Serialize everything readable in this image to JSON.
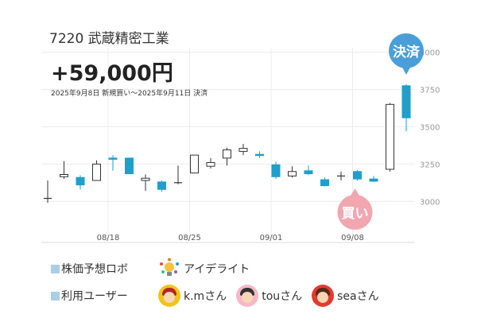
{
  "header": {
    "title": "7220 武蔵精密工業",
    "profit": "+59,000円",
    "period": "2025年9月8日 新規買い〜2025年9月11日 決済"
  },
  "badges": {
    "buy": "買い",
    "settle": "決済"
  },
  "colors": {
    "down": "#1e9fcc",
    "up_border": "#333333",
    "badge": "#4a9fd8",
    "buy_badge": "#f2a6b0"
  },
  "chart_data": {
    "type": "candlestick",
    "y_ticks": [
      "3000",
      "3250",
      "3500",
      "3750",
      "4000"
    ],
    "y_tick_values": [
      3000,
      3250,
      3500,
      3750,
      4000
    ],
    "ylim": [
      2735,
      4030
    ],
    "x_ticks": [
      "08/18",
      "08/25",
      "09/01",
      "09/08"
    ],
    "x_tick_candle_index": [
      4,
      9,
      14,
      19
    ],
    "candles": [
      {
        "open": 3020,
        "close": 3020,
        "high": 3140,
        "low": 2990
      },
      {
        "open": 3165,
        "close": 3180,
        "high": 3270,
        "low": 3150
      },
      {
        "open": 3160,
        "close": 3110,
        "high": 3175,
        "low": 3080
      },
      {
        "open": 3140,
        "close": 3250,
        "high": 3275,
        "low": 3140
      },
      {
        "open": 3290,
        "close": 3285,
        "high": 3310,
        "low": 3205
      },
      {
        "open": 3290,
        "close": 3185,
        "high": 3290,
        "low": 3185
      },
      {
        "open": 3140,
        "close": 3155,
        "high": 3180,
        "low": 3070
      },
      {
        "open": 3130,
        "close": 3080,
        "high": 3140,
        "low": 3065
      },
      {
        "open": 3125,
        "close": 3125,
        "high": 3240,
        "low": 3115
      },
      {
        "open": 3190,
        "close": 3310,
        "high": 3310,
        "low": 3190
      },
      {
        "open": 3235,
        "close": 3260,
        "high": 3290,
        "low": 3220
      },
      {
        "open": 3290,
        "close": 3345,
        "high": 3360,
        "low": 3240
      },
      {
        "open": 3335,
        "close": 3355,
        "high": 3385,
        "low": 3310
      },
      {
        "open": 3315,
        "close": 3310,
        "high": 3335,
        "low": 3290
      },
      {
        "open": 3245,
        "close": 3165,
        "high": 3265,
        "low": 3150
      },
      {
        "open": 3170,
        "close": 3200,
        "high": 3235,
        "low": 3160
      },
      {
        "open": 3205,
        "close": 3185,
        "high": 3240,
        "low": 3175
      },
      {
        "open": 3145,
        "close": 3105,
        "high": 3160,
        "low": 3100
      },
      {
        "open": 3170,
        "close": 3170,
        "high": 3200,
        "low": 3140
      },
      {
        "open": 3200,
        "close": 3150,
        "high": 3210,
        "low": 3140
      },
      {
        "open": 3150,
        "close": 3135,
        "high": 3170,
        "low": 3130
      },
      {
        "open": 3215,
        "close": 3650,
        "high": 3660,
        "low": 3200
      },
      {
        "open": 3775,
        "close": 3560,
        "high": 3785,
        "low": 3470
      }
    ],
    "buy_candle_index": 19,
    "settle_candle_index": 22
  },
  "legend": {
    "robot_label": "株価予想ロボ",
    "robot_name": "アイデライト",
    "robot_icon": "lightbulb-icon",
    "users_label": "利用ユーザー",
    "users": [
      {
        "name": "k.mさん",
        "icon": "avatar-km"
      },
      {
        "name": "touさん",
        "icon": "avatar-tou"
      },
      {
        "name": "seaさん",
        "icon": "avatar-sea"
      }
    ]
  }
}
